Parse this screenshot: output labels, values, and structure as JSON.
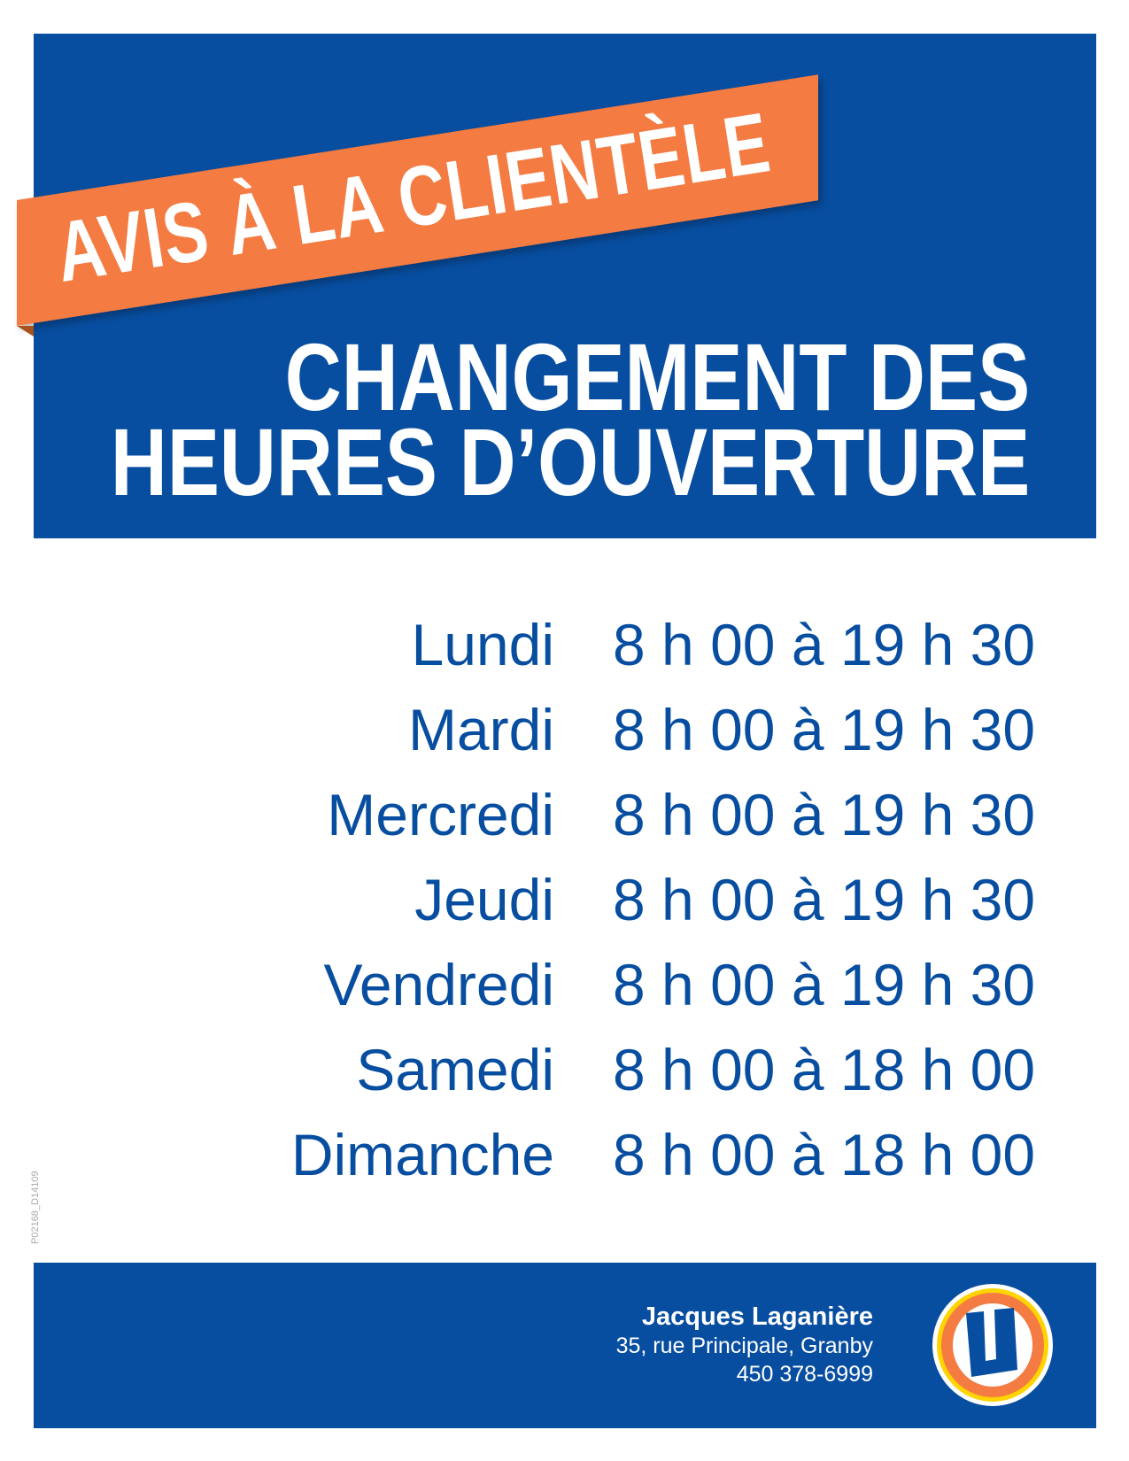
{
  "banner": "AVIS À LA CLIENTÈLE",
  "title": [
    "CHANGEMENT DES",
    "HEURES D’OUVERTURE"
  ],
  "hours": [
    {
      "day": "Lundi",
      "time": "8 h 00 à 19 h 30"
    },
    {
      "day": "Mardi",
      "time": "8 h 00 à 19 h 30"
    },
    {
      "day": "Mercredi",
      "time": "8 h 00 à 19 h 30"
    },
    {
      "day": "Jeudi",
      "time": "8 h 00 à 19 h 30"
    },
    {
      "day": "Vendredi",
      "time": "8 h 00 à 19 h 30"
    },
    {
      "day": "Samedi",
      "time": "8 h 00 à 18 h 00"
    },
    {
      "day": "Dimanche",
      "time": "8 h 00 à 18 h 00"
    }
  ],
  "doc_code": "P02168_D14109",
  "store": {
    "name": "Jacques Laganière",
    "address": "35, rue Principale, Granby",
    "phone": "450 378-6999",
    "logo_letter": "U"
  },
  "colors": {
    "blue": "#084ea0",
    "orange": "#f47b42",
    "yellow": "#ffd400"
  }
}
